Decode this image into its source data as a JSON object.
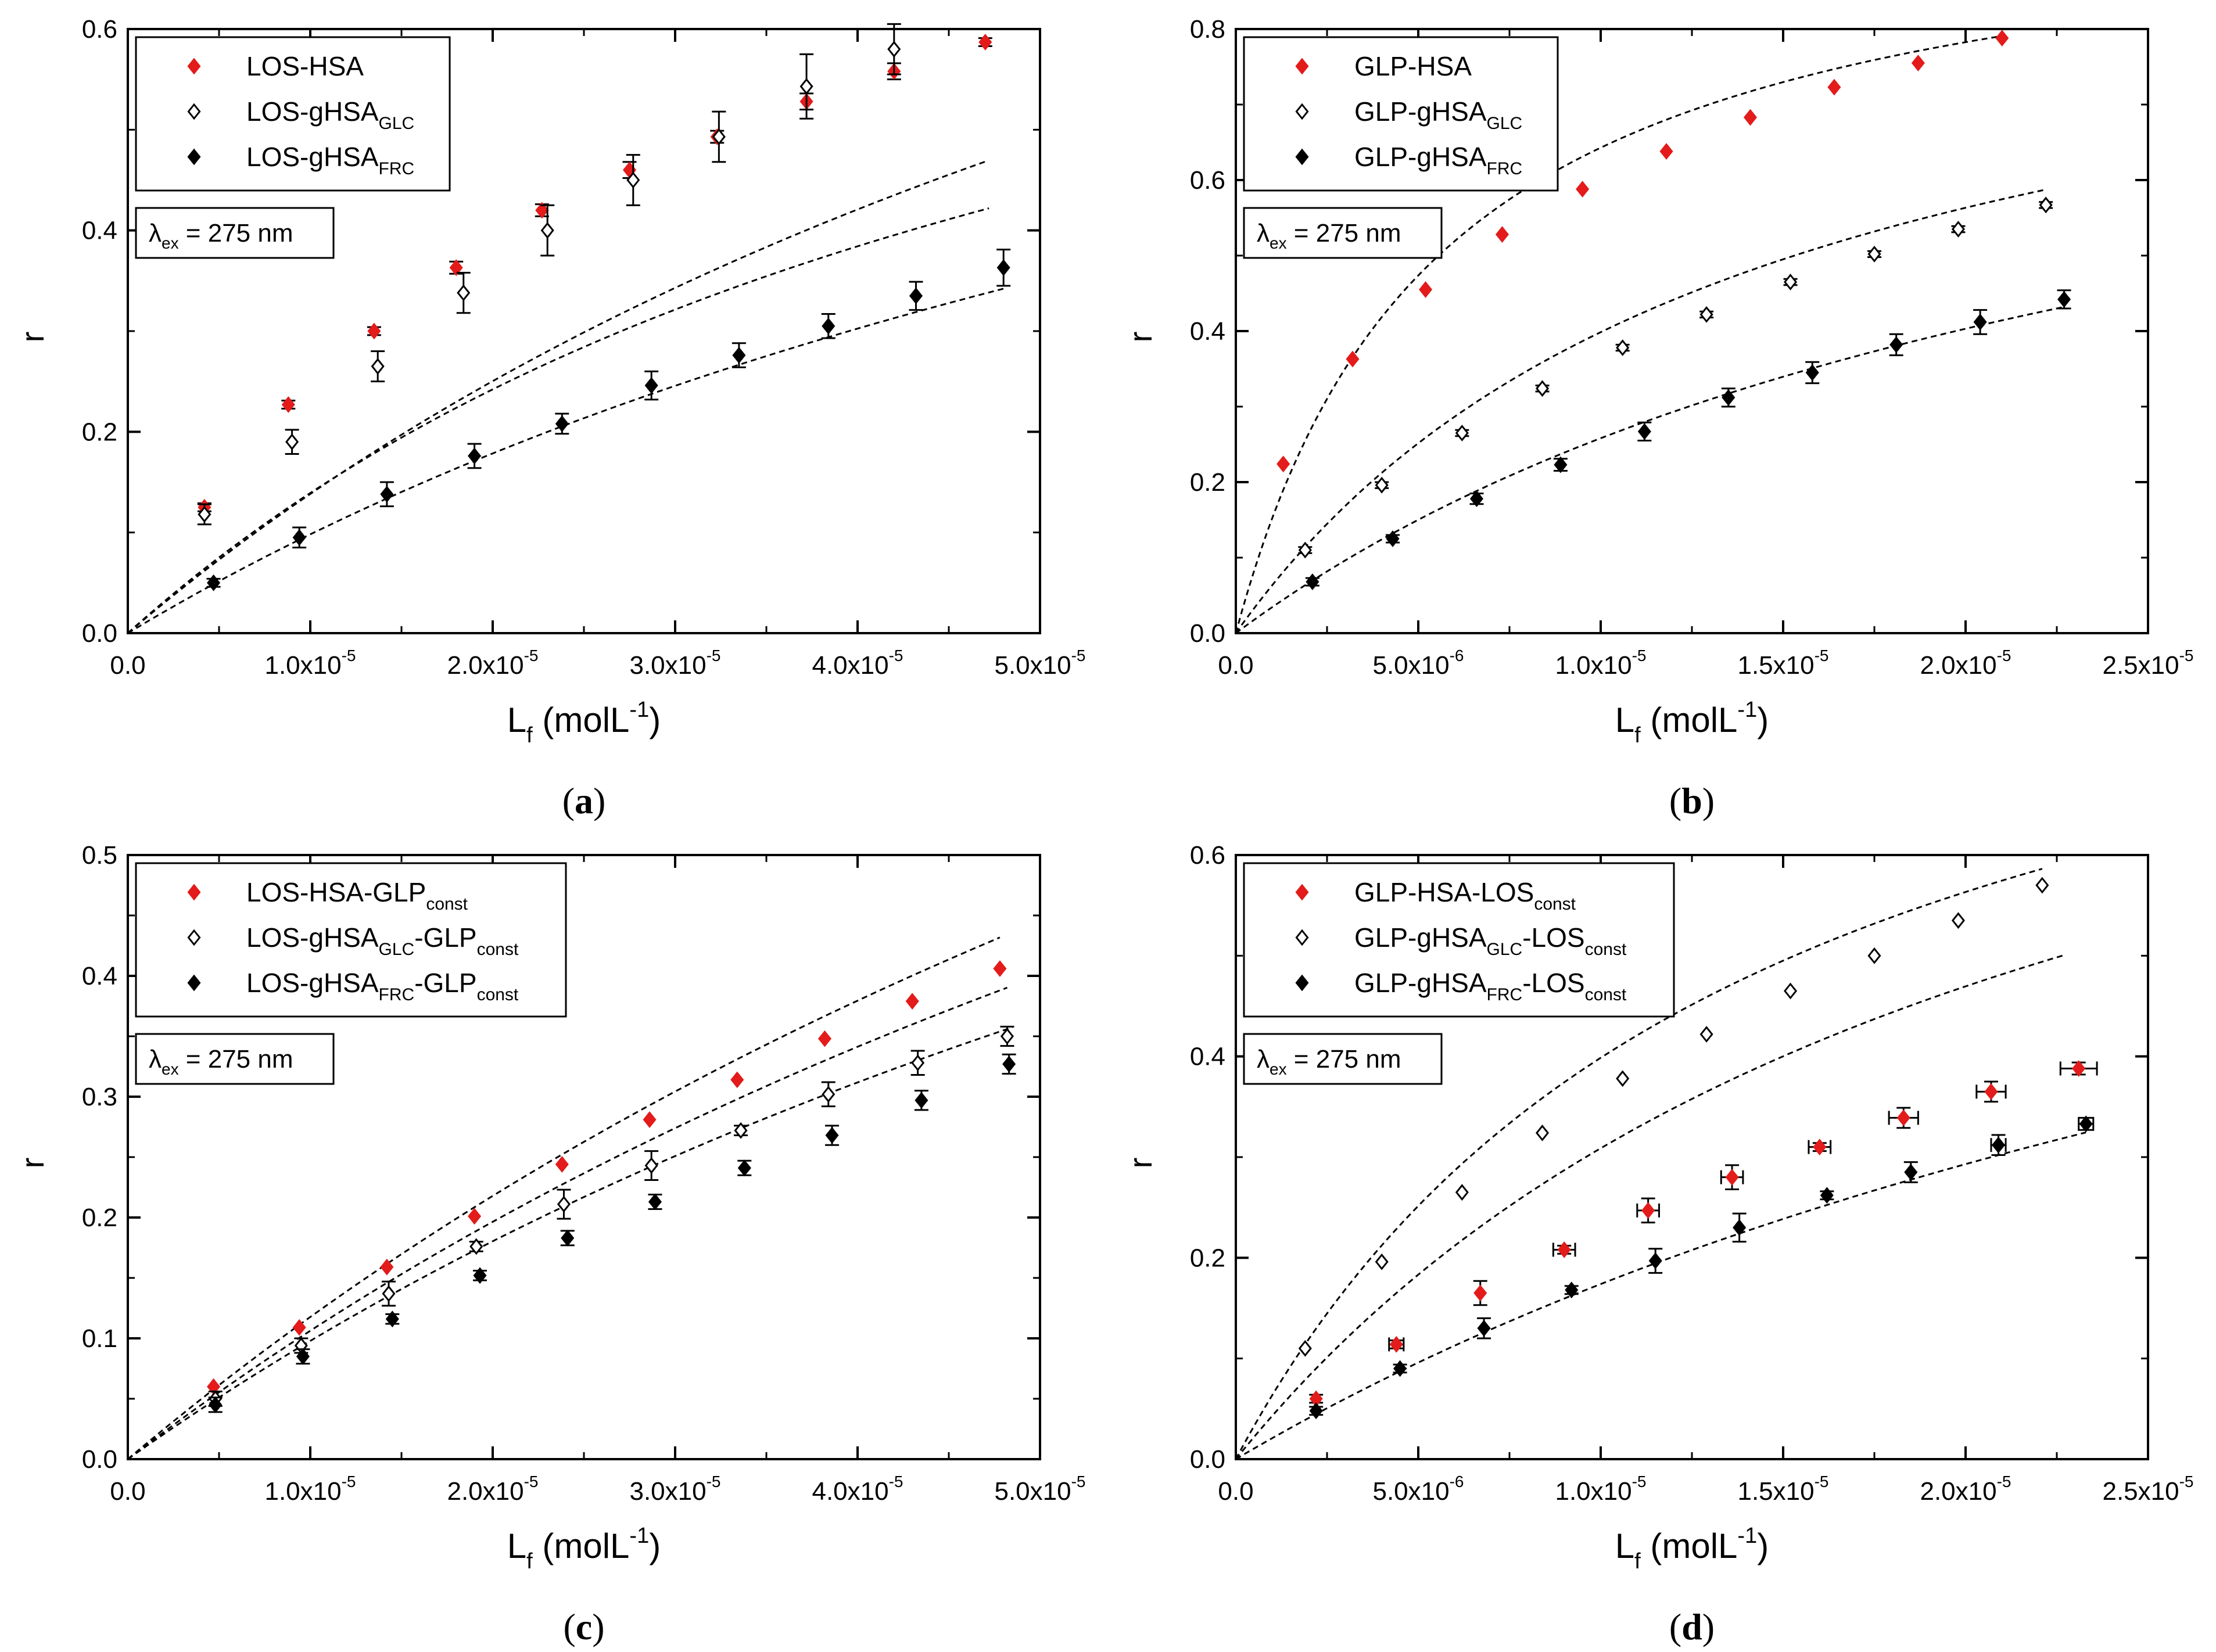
{
  "chart_data": [
    {
      "type": "scatter",
      "caption": "(a)",
      "caption_letter": "a",
      "ylabel": "r",
      "xlabel_main": "L",
      "xlabel_sub": "f",
      "xlabel_unit": "(molL",
      "xlabel_sup": "-1",
      "xlabel_close": ")",
      "xlim": [
        0,
        5e-05
      ],
      "ylim": [
        0,
        0.6
      ],
      "xticks": [
        0,
        1e-05,
        2e-05,
        3e-05,
        4e-05,
        5e-05
      ],
      "xtick_labels": [
        [
          "0.0",
          ""
        ],
        [
          "1.0x10",
          "-5"
        ],
        [
          "2.0x10",
          "-5"
        ],
        [
          "3.0x10",
          "-5"
        ],
        [
          "4.0x10",
          "-5"
        ],
        [
          "5.0x10",
          "-5"
        ]
      ],
      "yticks": [
        0,
        0.2,
        0.4,
        0.6
      ],
      "ytick_labels": [
        "0.0",
        "0.2",
        "0.4",
        "0.6"
      ],
      "annotation": {
        "prefix": "λ",
        "sub": "ex",
        "text": " = 275 nm"
      },
      "legend": [
        {
          "base": "LOS-HSA",
          "sub": "",
          "suffix": "",
          "sub2": "",
          "marker": "red"
        },
        {
          "base": "LOS-gHSA",
          "sub": "GLC",
          "suffix": "",
          "sub2": "",
          "marker": "open"
        },
        {
          "base": "LOS-gHSA",
          "sub": "FRC",
          "suffix": "",
          "sub2": "",
          "marker": "filled"
        }
      ],
      "series": [
        {
          "name": "LOS-HSA",
          "marker": "red",
          "x": [
            4.2e-06,
            8.8e-06,
            1.35e-05,
            1.8e-05,
            2.27e-05,
            2.75e-05,
            3.23e-05,
            3.72e-05,
            4.2e-05,
            4.7e-05
          ],
          "y": [
            0.125,
            0.227,
            0.3,
            0.363,
            0.42,
            0.46,
            0.493,
            0.528,
            0.558,
            0.587
          ],
          "yerr": [
            0.004,
            0.004,
            0.004,
            0.006,
            0.006,
            0.008,
            0.006,
            0.008,
            0.008,
            0.004
          ],
          "xerr": [
            0,
            0,
            0,
            0,
            0,
            0,
            0,
            0,
            0,
            0
          ]
        },
        {
          "name": "LOS-gHSA GLC",
          "marker": "open",
          "x": [
            4.2e-06,
            9e-06,
            1.37e-05,
            1.84e-05,
            2.3e-05,
            2.77e-05,
            3.24e-05,
            3.72e-05,
            4.2e-05
          ],
          "y": [
            0.118,
            0.19,
            0.265,
            0.338,
            0.4,
            0.45,
            0.493,
            0.543,
            0.58
          ],
          "yerr": [
            0.01,
            0.012,
            0.015,
            0.02,
            0.025,
            0.025,
            0.025,
            0.032,
            0.025
          ],
          "xerr": [
            0,
            0,
            0,
            0,
            0,
            0,
            0,
            0,
            0
          ]
        },
        {
          "name": "LOS-gHSA FRC",
          "marker": "filled",
          "x": [
            4.7e-06,
            9.4e-06,
            1.42e-05,
            1.9e-05,
            2.38e-05,
            2.87e-05,
            3.35e-05,
            3.84e-05,
            4.32e-05,
            4.8e-05
          ],
          "y": [
            0.05,
            0.095,
            0.138,
            0.176,
            0.208,
            0.246,
            0.276,
            0.305,
            0.335,
            0.363
          ],
          "yerr": [
            0.004,
            0.01,
            0.012,
            0.012,
            0.01,
            0.014,
            0.012,
            0.012,
            0.014,
            0.018
          ],
          "xerr": [
            0,
            0,
            0,
            0,
            0,
            0,
            0,
            0,
            0,
            0
          ]
        }
      ],
      "fits": [
        {
          "n": 0.93,
          "K": 17600.0,
          "x_end": 4.72e-05
        },
        {
          "n": 1.32,
          "K": 11700.0,
          "x_end": 4.7e-05
        },
        {
          "n": 0.99,
          "K": 11000.0,
          "x_end": 4.8e-05
        }
      ]
    },
    {
      "type": "scatter",
      "caption": "(b)",
      "caption_letter": "b",
      "ylabel": "r",
      "xlabel_main": "L",
      "xlabel_sub": "f",
      "xlabel_unit": "(molL",
      "xlabel_sup": "-1",
      "xlabel_close": ")",
      "xlim": [
        0,
        2.5e-05
      ],
      "ylim": [
        0,
        0.8
      ],
      "xticks": [
        0,
        5e-06,
        1e-05,
        1.5e-05,
        2e-05,
        2.5e-05
      ],
      "xtick_labels": [
        [
          "0.0",
          ""
        ],
        [
          "5.0x10",
          "-6"
        ],
        [
          "1.0x10",
          "-5"
        ],
        [
          "1.5x10",
          "-5"
        ],
        [
          "2.0x10",
          "-5"
        ],
        [
          "2.5x10",
          "-5"
        ]
      ],
      "yticks": [
        0,
        0.2,
        0.4,
        0.6,
        0.8
      ],
      "ytick_labels": [
        "0.0",
        "0.2",
        "0.4",
        "0.6",
        "0.8"
      ],
      "annotation": {
        "prefix": "λ",
        "sub": "ex",
        "text": " = 275 nm"
      },
      "legend": [
        {
          "base": "GLP-HSA",
          "sub": "",
          "suffix": "",
          "sub2": "",
          "marker": "red"
        },
        {
          "base": "GLP-gHSA",
          "sub": "GLC",
          "suffix": "",
          "sub2": "",
          "marker": "open"
        },
        {
          "base": "GLP-gHSA",
          "sub": "FRC",
          "suffix": "",
          "sub2": "",
          "marker": "filled"
        }
      ],
      "series": [
        {
          "name": "GLP-HSA",
          "marker": "red",
          "x": [
            1.3e-06,
            3.2e-06,
            5.2e-06,
            7.3e-06,
            9.5e-06,
            1.18e-05,
            1.41e-05,
            1.64e-05,
            1.87e-05,
            2.1e-05
          ],
          "y": [
            0.224,
            0.363,
            0.455,
            0.528,
            0.588,
            0.638,
            0.683,
            0.723,
            0.755,
            0.788
          ],
          "yerr": [
            0,
            0,
            0,
            0,
            0,
            0,
            0,
            0,
            0,
            0
          ],
          "xerr": [
            0,
            0,
            0,
            0,
            0,
            0,
            0,
            0,
            0,
            0
          ]
        },
        {
          "name": "GLP-gHSA GLC",
          "marker": "open",
          "x": [
            1.9e-06,
            4e-06,
            6.2e-06,
            8.4e-06,
            1.06e-05,
            1.29e-05,
            1.52e-05,
            1.75e-05,
            1.98e-05,
            2.22e-05
          ],
          "y": [
            0.11,
            0.196,
            0.265,
            0.324,
            0.378,
            0.422,
            0.465,
            0.502,
            0.535,
            0.567
          ],
          "yerr": [
            0.004,
            0.004,
            0.004,
            0.004,
            0.004,
            0.004,
            0.004,
            0.004,
            0.004,
            0.004
          ],
          "xerr": [
            0,
            0,
            0,
            0,
            0,
            0,
            0,
            0,
            0,
            0
          ]
        },
        {
          "name": "GLP-gHSA FRC",
          "marker": "filled",
          "x": [
            2.1e-06,
            4.3e-06,
            6.6e-06,
            8.9e-06,
            1.12e-05,
            1.35e-05,
            1.58e-05,
            1.81e-05,
            2.04e-05,
            2.27e-05
          ],
          "y": [
            0.068,
            0.125,
            0.178,
            0.223,
            0.267,
            0.312,
            0.345,
            0.382,
            0.412,
            0.442
          ],
          "yerr": [
            0.005,
            0.005,
            0.007,
            0.008,
            0.012,
            0.012,
            0.014,
            0.014,
            0.016,
            0.012
          ],
          "xerr": [
            0,
            0,
            0,
            0,
            0,
            0,
            0,
            0,
            0,
            0
          ]
        }
      ],
      "fits": [
        {
          "n": 1.0,
          "K": 180000.0,
          "x_end": 2.1e-05
        },
        {
          "n": 0.96,
          "K": 71000.0,
          "x_end": 2.22e-05
        },
        {
          "n": 0.92,
          "K": 39000.0,
          "x_end": 2.27e-05
        }
      ]
    },
    {
      "type": "scatter",
      "caption": "(c)",
      "caption_letter": "c",
      "ylabel": "r",
      "xlabel_main": "L",
      "xlabel_sub": "f",
      "xlabel_unit": "(molL",
      "xlabel_sup": "-1",
      "xlabel_close": ")",
      "xlim": [
        0,
        5e-05
      ],
      "ylim": [
        0,
        0.5
      ],
      "xticks": [
        0,
        1e-05,
        2e-05,
        3e-05,
        4e-05,
        5e-05
      ],
      "xtick_labels": [
        [
          "0.0",
          ""
        ],
        [
          "1.0x10",
          "-5"
        ],
        [
          "2.0x10",
          "-5"
        ],
        [
          "3.0x10",
          "-5"
        ],
        [
          "4.0x10",
          "-5"
        ],
        [
          "5.0x10",
          "-5"
        ]
      ],
      "yticks": [
        0,
        0.1,
        0.2,
        0.3,
        0.4,
        0.5
      ],
      "ytick_labels": [
        "0.0",
        "0.1",
        "0.2",
        "0.3",
        "0.4",
        "0.5"
      ],
      "annotation": {
        "prefix": "λ",
        "sub": "ex",
        "text": " = 275 nm"
      },
      "legend": [
        {
          "base": "LOS-HSA-GLP",
          "sub": "const",
          "suffix": "",
          "sub2": "",
          "marker": "red"
        },
        {
          "base": "LOS-gHSA",
          "sub": "GLC",
          "suffix": "-GLP",
          "sub2": "const",
          "marker": "open"
        },
        {
          "base": "LOS-gHSA",
          "sub": "FRC",
          "suffix": "-GLP",
          "sub2": "const",
          "marker": "filled"
        }
      ],
      "series": [
        {
          "name": "LOS-HSA-GLP const",
          "marker": "red",
          "x": [
            4.7e-06,
            9.4e-06,
            1.42e-05,
            1.9e-05,
            2.38e-05,
            2.86e-05,
            3.34e-05,
            3.82e-05,
            4.3e-05,
            4.78e-05
          ],
          "y": [
            0.06,
            0.109,
            0.159,
            0.201,
            0.244,
            0.281,
            0.314,
            0.348,
            0.379,
            0.406
          ],
          "yerr": [
            0,
            0,
            0,
            0,
            0,
            0,
            0,
            0,
            0,
            0
          ],
          "xerr": [
            0,
            0,
            0,
            0,
            0,
            0,
            0,
            0,
            0,
            0
          ]
        },
        {
          "name": "LOS-gHSA GLC-GLP const",
          "marker": "open",
          "x": [
            4.8e-06,
            9.5e-06,
            1.43e-05,
            1.91e-05,
            2.39e-05,
            2.87e-05,
            3.36e-05,
            3.84e-05,
            4.33e-05,
            4.82e-05
          ],
          "y": [
            0.05,
            0.094,
            0.137,
            0.176,
            0.211,
            0.243,
            0.272,
            0.302,
            0.328,
            0.35
          ],
          "yerr": [
            0.006,
            0.006,
            0.01,
            0.004,
            0.012,
            0.012,
            0.004,
            0.01,
            0.01,
            0.008
          ],
          "xerr": [
            0,
            0,
            0,
            0,
            0,
            0,
            0,
            0,
            0,
            0
          ]
        },
        {
          "name": "LOS-gHSA FRC-GLP const",
          "marker": "filled",
          "x": [
            4.8e-06,
            9.6e-06,
            1.45e-05,
            1.93e-05,
            2.41e-05,
            2.89e-05,
            3.38e-05,
            3.86e-05,
            4.35e-05,
            4.83e-05
          ],
          "y": [
            0.045,
            0.085,
            0.116,
            0.152,
            0.183,
            0.213,
            0.241,
            0.268,
            0.297,
            0.327
          ],
          "yerr": [
            0.006,
            0.006,
            0.004,
            0.004,
            0.006,
            0.006,
            0.006,
            0.008,
            0.008,
            0.008
          ],
          "xerr": [
            0,
            0,
            0,
            0,
            0,
            0,
            0,
            0,
            0,
            0
          ]
        }
      ],
      "fits": [
        {
          "n": 1.47,
          "K": 8700.0,
          "x_end": 4.78e-05
        },
        {
          "n": 1.3,
          "K": 8900.0,
          "x_end": 4.82e-05
        },
        {
          "n": 1.15,
          "K": 9300.0,
          "x_end": 4.85e-05
        }
      ]
    },
    {
      "type": "scatter",
      "caption": "(d)",
      "caption_letter": "d",
      "ylabel": "r",
      "xlabel_main": "L",
      "xlabel_sub": "f",
      "xlabel_unit": "(molL",
      "xlabel_sup": "-1",
      "xlabel_close": ")",
      "xlim": [
        0,
        2.5e-05
      ],
      "ylim": [
        0,
        0.6
      ],
      "xticks": [
        0,
        5e-06,
        1e-05,
        1.5e-05,
        2e-05,
        2.5e-05
      ],
      "xtick_labels": [
        [
          "0.0",
          ""
        ],
        [
          "5.0x10",
          "-6"
        ],
        [
          "1.0x10",
          "-5"
        ],
        [
          "1.5x10",
          "-5"
        ],
        [
          "2.0x10",
          "-5"
        ],
        [
          "2.5x10",
          "-5"
        ]
      ],
      "yticks": [
        0,
        0.2,
        0.4,
        0.6
      ],
      "ytick_labels": [
        "0.0",
        "0.2",
        "0.4",
        "0.6"
      ],
      "annotation": {
        "prefix": "λ",
        "sub": "ex",
        "text": " = 275 nm"
      },
      "legend": [
        {
          "base": "GLP-HSA-LOS",
          "sub": "const",
          "suffix": "",
          "sub2": "",
          "marker": "red"
        },
        {
          "base": "GLP-gHSA",
          "sub": "GLC",
          "suffix": "-LOS",
          "sub2": "const",
          "marker": "open"
        },
        {
          "base": "GLP-gHSA",
          "sub": "FRC",
          "suffix": "-LOS",
          "sub2": "const",
          "marker": "filled"
        }
      ],
      "series": [
        {
          "name": "GLP-HSA-LOS const",
          "marker": "red",
          "x": [
            2.2e-06,
            4.4e-06,
            6.7e-06,
            9e-06,
            1.13e-05,
            1.36e-05,
            1.6e-05,
            1.83e-05,
            2.07e-05,
            2.31e-05
          ],
          "y": [
            0.06,
            0.114,
            0.165,
            0.208,
            0.247,
            0.28,
            0.31,
            0.339,
            0.365,
            0.388
          ],
          "yerr": [
            0.004,
            0.004,
            0.012,
            0.004,
            0.012,
            0.012,
            0.004,
            0.01,
            0.01,
            0.006
          ],
          "xerr": [
            0,
            2e-07,
            0,
            3e-07,
            3e-07,
            3e-07,
            3e-07,
            4e-07,
            4e-07,
            5e-07
          ]
        },
        {
          "name": "GLP-gHSA GLC-LOS const",
          "marker": "open",
          "x": [
            1.9e-06,
            4e-06,
            6.2e-06,
            8.4e-06,
            1.06e-05,
            1.29e-05,
            1.52e-05,
            1.75e-05,
            1.98e-05,
            2.21e-05
          ],
          "y": [
            0.11,
            0.196,
            0.265,
            0.324,
            0.378,
            0.422,
            0.465,
            0.5,
            0.535,
            0.57
          ],
          "yerr": [
            0,
            0,
            0,
            0,
            0,
            0,
            0,
            0,
            0,
            0
          ],
          "xerr": [
            0,
            0,
            0,
            0,
            0,
            0,
            0,
            0,
            0,
            0
          ]
        },
        {
          "name": "GLP-gHSA FRC-LOS const",
          "marker": "filled",
          "x": [
            2.2e-06,
            4.5e-06,
            6.8e-06,
            9.2e-06,
            1.15e-05,
            1.38e-05,
            1.62e-05,
            1.85e-05,
            2.09e-05,
            2.33e-05
          ],
          "y": [
            0.048,
            0.09,
            0.13,
            0.168,
            0.197,
            0.23,
            0.262,
            0.285,
            0.312,
            0.333
          ],
          "yerr": [
            0.004,
            0.004,
            0.01,
            0.004,
            0.012,
            0.014,
            0.004,
            0.01,
            0.01,
            0.006
          ],
          "xerr": [
            0,
            0,
            0,
            0,
            0,
            0,
            0,
            0,
            2e-07,
            2e-07
          ]
        }
      ],
      "fits": [
        {
          "n": 0.98,
          "K": 46000.0,
          "x_end": 2.27e-05
        },
        {
          "n": 0.96,
          "K": 71000.0,
          "x_end": 2.21e-05
        },
        {
          "n": 0.93,
          "K": 23000.0,
          "x_end": 2.33e-05
        }
      ]
    }
  ]
}
